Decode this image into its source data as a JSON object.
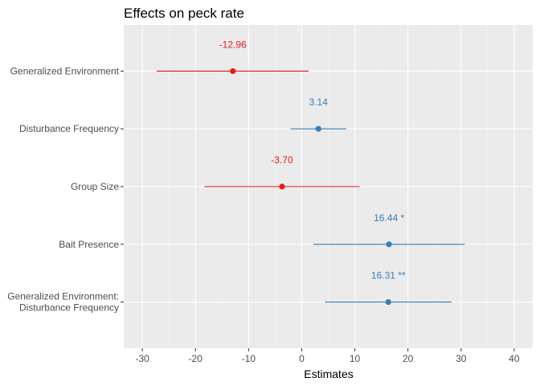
{
  "chart_data": {
    "type": "forest",
    "title": "Effects on peck rate",
    "xlabel": "Estimates",
    "ylabel": "",
    "xlim": [
      -33.5,
      43.5
    ],
    "x_ticks": [
      -30,
      -20,
      -10,
      0,
      10,
      20,
      30,
      40
    ],
    "grid": true,
    "legend": "none",
    "terms": [
      {
        "label": [
          "Generalized Environment"
        ],
        "estimate": -12.96,
        "ci_low": -27.3,
        "ci_high": 1.3,
        "value_label": "-12.96",
        "sign": "negative"
      },
      {
        "label": [
          "Disturbance Frequency"
        ],
        "estimate": 3.14,
        "ci_low": -2.1,
        "ci_high": 8.4,
        "value_label": "3.14",
        "sign": "positive"
      },
      {
        "label": [
          "Group Size"
        ],
        "estimate": -3.7,
        "ci_low": -18.3,
        "ci_high": 10.9,
        "value_label": "-3.70",
        "sign": "negative"
      },
      {
        "label": [
          "Bait Presence"
        ],
        "estimate": 16.44,
        "ci_low": 2.2,
        "ci_high": 30.7,
        "value_label": "16.44 *",
        "sign": "positive"
      },
      {
        "label": [
          "Generalized Environment:",
          "Disturbance Frequency"
        ],
        "estimate": 16.31,
        "ci_low": 4.4,
        "ci_high": 28.2,
        "value_label": "16.31 **",
        "sign": "positive"
      }
    ],
    "colors": {
      "positive": "#377eb8",
      "negative": "#e41a1c",
      "panel_bg": "#ebebeb",
      "grid_major": "#ffffff",
      "grid_minor": "#f5f5f5"
    }
  }
}
